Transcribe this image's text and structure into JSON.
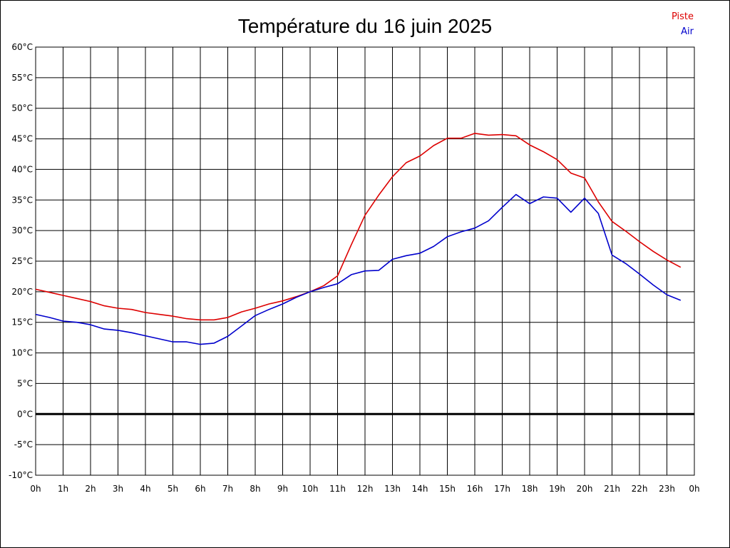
{
  "chart_data": {
    "type": "line",
    "title": "Température du 16 juin 2025",
    "ylim": [
      -10,
      60
    ],
    "yticks": [
      "60°C",
      "55°C",
      "50°C",
      "45°C",
      "40°C",
      "35°C",
      "30°C",
      "25°C",
      "20°C",
      "15°C",
      "10°C",
      "5°C",
      "0°C",
      "-5°C",
      "-10°C"
    ],
    "xticks": [
      "0h",
      "1h",
      "2h",
      "3h",
      "4h",
      "5h",
      "6h",
      "7h",
      "8h",
      "9h",
      "10h",
      "11h",
      "12h",
      "13h",
      "14h",
      "15h",
      "16h",
      "17h",
      "18h",
      "19h",
      "20h",
      "21h",
      "22h",
      "23h",
      "0h"
    ],
    "grid": true,
    "legend_position": "top-right",
    "x_hours": [
      0,
      0.5,
      1,
      1.5,
      2,
      2.5,
      3,
      3.5,
      4,
      4.5,
      5,
      5.5,
      6,
      6.5,
      7,
      7.5,
      8,
      8.5,
      9,
      9.5,
      10,
      10.5,
      11,
      11.5,
      12,
      12.5,
      13,
      13.5,
      14,
      14.5,
      15,
      15.5,
      16,
      16.5,
      17,
      17.5,
      18,
      18.5,
      19,
      19.5,
      20,
      20.5,
      21,
      21.5,
      22,
      22.5,
      23,
      23.5
    ],
    "series": [
      {
        "name": "Piste",
        "color": "#dd0000",
        "values": [
          20.4,
          19.9,
          19.4,
          18.9,
          18.4,
          17.7,
          17.3,
          17.1,
          16.6,
          16.3,
          16.0,
          15.6,
          15.4,
          15.4,
          15.8,
          16.7,
          17.3,
          18.0,
          18.5,
          19.2,
          20.0,
          21.0,
          22.6,
          27.7,
          32.5,
          35.8,
          38.8,
          41.1,
          42.2,
          43.9,
          45.1,
          45.1,
          45.9,
          45.6,
          45.7,
          45.5,
          44.0,
          42.9,
          41.6,
          39.4,
          38.6,
          34.7,
          31.5,
          29.9,
          28.2,
          26.6,
          25.2,
          24.0
        ]
      },
      {
        "name": "Air",
        "color": "#0000cc",
        "values": [
          16.3,
          15.8,
          15.2,
          15.0,
          14.6,
          13.9,
          13.7,
          13.3,
          12.8,
          12.3,
          11.8,
          11.8,
          11.4,
          11.6,
          12.7,
          14.4,
          16.1,
          17.1,
          18.0,
          19.1,
          20.0,
          20.7,
          21.3,
          22.8,
          23.4,
          23.5,
          25.3,
          25.9,
          26.3,
          27.4,
          29.0,
          29.8,
          30.4,
          31.6,
          33.8,
          35.9,
          34.4,
          35.5,
          35.3,
          33.0,
          35.3,
          32.8,
          26.0,
          24.6,
          22.9,
          21.1,
          19.5,
          18.6
        ]
      }
    ]
  }
}
